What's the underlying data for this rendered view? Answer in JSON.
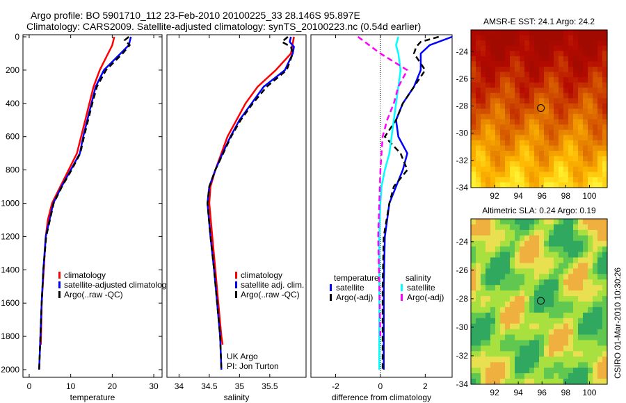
{
  "title": {
    "line1": "Argo profile: BO 5901710_112 23-Feb-2010 20100225_33 28.146S 95.897E",
    "line2": "Climatology: CARS2009. Satellite-adjusted climatology: synTS_20100223.nc (0.54d earlier)"
  },
  "footer": "CSIRO 01-Mar-2010 10:30:26",
  "colors": {
    "clim": "#ff0000",
    "sat": "#0000ff",
    "argo": "#000000",
    "salsat": "#00ffff",
    "salargo": "#ff00ff"
  },
  "chart_data": [
    {
      "type": "line",
      "id": "temp",
      "xlabel": "temperature",
      "xlim": [
        -1.5,
        32
      ],
      "ylim": [
        0,
        2050
      ],
      "xticks": [
        0,
        10,
        20,
        30
      ],
      "yticks": [
        0,
        200,
        400,
        600,
        800,
        1000,
        1200,
        1400,
        1600,
        1800,
        2000
      ],
      "legend": [
        "climatology",
        "satellite-adjusted climatology",
        "Argo(..raw -QC)"
      ],
      "legend_placement": "lower-right",
      "series": [
        {
          "name": "climatology",
          "style": "solid",
          "color": "clim",
          "depth": [
            0,
            50,
            100,
            200,
            300,
            400,
            500,
            600,
            700,
            800,
            900,
            1000,
            1100,
            1200,
            1400,
            1600,
            1850
          ],
          "values": [
            20.5,
            20,
            19,
            17,
            15.5,
            14.5,
            13.5,
            12.5,
            11.5,
            9.5,
            7.5,
            5.5,
            4.5,
            4,
            3.5,
            3,
            2.8
          ]
        },
        {
          "name": "satellite-adjusted climatology",
          "style": "solid",
          "color": "sat",
          "depth": [
            0,
            50,
            100,
            200,
            300,
            400,
            500,
            600,
            700,
            800,
            900,
            1000,
            1200,
            1400,
            1600,
            1800,
            2000
          ],
          "values": [
            24.5,
            24,
            22,
            18,
            16,
            15,
            14,
            13,
            12.2,
            10,
            7.8,
            5.8,
            4,
            3.4,
            3,
            2.7,
            2.4
          ]
        },
        {
          "name": "Argo(..raw -QC)",
          "style": "dash",
          "color": "argo",
          "depth": [
            0,
            20,
            50,
            100,
            200,
            300,
            400,
            500,
            600,
            700,
            800,
            900,
            1000,
            1200,
            1400,
            1600,
            1800,
            2000
          ],
          "values": [
            24,
            23,
            24.2,
            22.5,
            18.5,
            16.3,
            15.2,
            14.2,
            13.2,
            12.3,
            10.2,
            7.9,
            5.9,
            4.1,
            3.4,
            3,
            2.7,
            2.4
          ]
        }
      ]
    },
    {
      "type": "line",
      "id": "sal",
      "xlabel": "salinity",
      "xlim": [
        33.8,
        36.1
      ],
      "ylim": [
        0,
        2050
      ],
      "xticks": [
        34,
        34.5,
        35,
        35.5
      ],
      "yticks": [],
      "legend": [
        "climatology",
        "satellite adj. clim.",
        "Argo(..raw -QC)"
      ],
      "legend_placement": "lower-right",
      "annotations": [
        "UK Argo",
        "PI: Jon Turton"
      ],
      "series": [
        {
          "name": "climatology",
          "style": "solid",
          "color": "clim",
          "depth": [
            0,
            100,
            200,
            300,
            400,
            500,
            600,
            700,
            800,
            900,
            1000,
            1200,
            1400,
            1600,
            1800,
            1850
          ],
          "values": [
            35.9,
            35.85,
            35.6,
            35.3,
            35.1,
            34.95,
            34.8,
            34.7,
            34.6,
            34.52,
            34.5,
            34.55,
            34.6,
            34.65,
            34.7,
            34.72
          ]
        },
        {
          "name": "satellite adj. clim.",
          "style": "solid",
          "color": "sat",
          "depth": [
            0,
            30,
            60,
            100,
            200,
            300,
            400,
            500,
            600,
            700,
            800,
            900,
            1000,
            1200,
            1400,
            1600,
            1800,
            2000
          ],
          "values": [
            35.85,
            35.83,
            35.9,
            35.88,
            35.75,
            35.4,
            35.2,
            35,
            34.85,
            34.72,
            34.6,
            34.5,
            34.47,
            34.52,
            34.58,
            34.63,
            34.68,
            34.7
          ]
        },
        {
          "name": "Argo(..raw -QC)",
          "style": "dash",
          "color": "argo",
          "depth": [
            0,
            30,
            60,
            100,
            200,
            300,
            400,
            500,
            600,
            700,
            800,
            900,
            1000,
            1200,
            1400,
            1600,
            1800,
            2000
          ],
          "values": [
            35.8,
            35.7,
            35.85,
            35.88,
            35.78,
            35.45,
            35.22,
            35.02,
            34.86,
            34.73,
            34.6,
            34.5,
            34.47,
            34.52,
            34.58,
            34.63,
            34.68,
            34.7
          ]
        }
      ]
    },
    {
      "type": "line",
      "id": "diff",
      "xlabel": "difference from climatology",
      "xlim": [
        -3.1,
        3.2
      ],
      "ylim": [
        0,
        2050
      ],
      "xticks": [
        -2,
        0,
        2
      ],
      "yticks": [],
      "legend_headers": [
        "temperature",
        "salinity"
      ],
      "legend": [
        "satellite",
        "Argo(-adj)",
        "satellite",
        "Argo(-adj)"
      ],
      "legend_placement": "lower-center",
      "series": [
        {
          "name": "temperature satellite",
          "style": "solid",
          "color": "sat",
          "depth": [
            0,
            50,
            100,
            200,
            300,
            400,
            500,
            600,
            700,
            800,
            900,
            1000,
            1100,
            1200,
            1500,
            2000
          ],
          "values": [
            3.2,
            2.2,
            1.8,
            1.8,
            1.5,
            1.0,
            0.7,
            0.8,
            1.2,
            1.0,
            0.7,
            0.4,
            0.3,
            0.2,
            0.15,
            0.15
          ]
        },
        {
          "name": "temperature Argo(-adj)",
          "style": "dash",
          "color": "argo",
          "depth": [
            0,
            30,
            60,
            100,
            200,
            300,
            400,
            500,
            600,
            700,
            800,
            900,
            1000,
            1200,
            1500,
            2000
          ],
          "values": [
            2.6,
            1.8,
            1.6,
            1.5,
            2.0,
            1.5,
            1.0,
            0.7,
            0.2,
            0.9,
            1.2,
            0.6,
            0.4,
            0.15,
            0.1,
            0.1
          ]
        },
        {
          "name": "salinity satellite",
          "style": "solid",
          "color": "salsat",
          "depth": [
            0,
            50,
            100,
            200,
            300,
            400,
            500,
            600,
            700,
            800,
            900,
            1000,
            1200,
            1600,
            2000
          ],
          "values": [
            0.8,
            0.7,
            0.8,
            0.9,
            0.8,
            0.7,
            0.6,
            0.5,
            0.4,
            0.2,
            0.05,
            0,
            -0.05,
            -0.05,
            -0.05
          ]
        },
        {
          "name": "salinity Argo(-adj)",
          "style": "dash",
          "color": "salargo",
          "depth": [
            0,
            30,
            60,
            100,
            200,
            300,
            400,
            500,
            600,
            800,
            1000,
            1200,
            1500,
            1800
          ],
          "values": [
            -1.0,
            -0.7,
            -0.4,
            0.0,
            1.2,
            0.8,
            0.6,
            0.3,
            0.1,
            0.0,
            -0.05,
            -0.1,
            -0.05,
            0
          ]
        }
      ]
    },
    {
      "type": "heatmap",
      "id": "sst",
      "title": "AMSR-E SST: 24.1 Argo: 24.2",
      "xlim": [
        90,
        101.5
      ],
      "ylim": [
        -34,
        -22.4
      ],
      "xticks": [
        92,
        94,
        96,
        98,
        100
      ],
      "yticks": [
        -24,
        -26,
        -28,
        -30,
        -32,
        -34
      ],
      "marker": [
        95.9,
        -28.15
      ]
    },
    {
      "type": "heatmap",
      "id": "sla",
      "title": "Altimetric SLA: 0.24 Argo: 0.19",
      "xlim": [
        90,
        101.5
      ],
      "ylim": [
        -34,
        -22.4
      ],
      "xticks": [
        92,
        94,
        96,
        98,
        100
      ],
      "yticks": [
        -24,
        -26,
        -28,
        -30,
        -32,
        -34
      ],
      "marker": [
        95.9,
        -28.15
      ]
    }
  ]
}
